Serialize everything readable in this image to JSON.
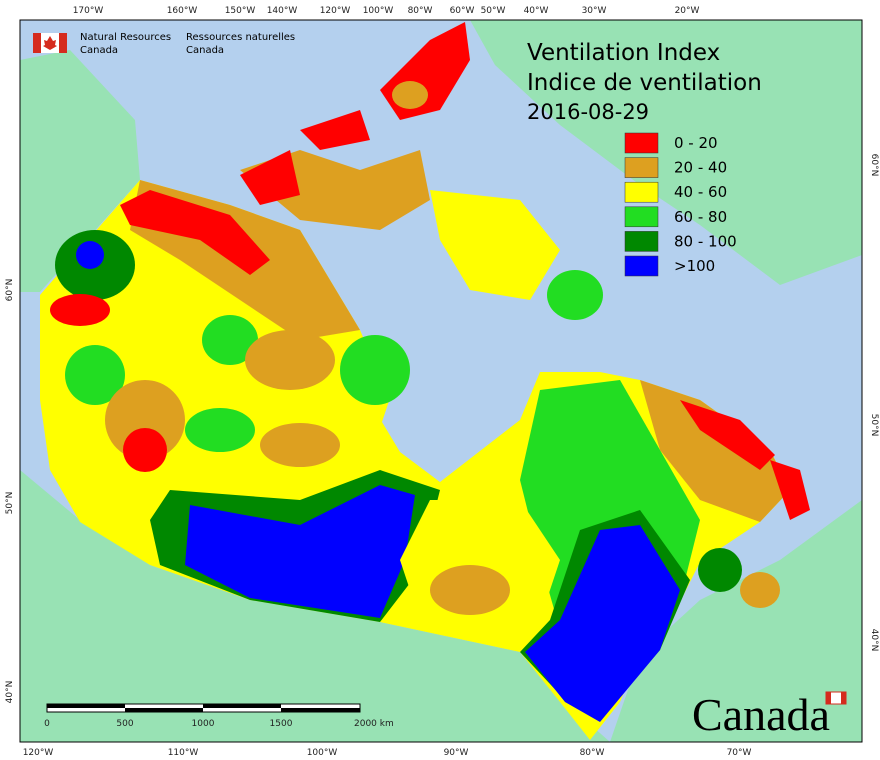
{
  "logo": {
    "en_line1": "Natural Resources",
    "en_line2": "Canada",
    "fr_line1": "Ressources naturelles",
    "fr_line2": "Canada"
  },
  "title": {
    "line1": "Ventilation Index",
    "line2": "Indice de ventilation",
    "date": "2016-08-29"
  },
  "legend": [
    {
      "label": "0 - 20",
      "color": "#ff0000"
    },
    {
      "label": "20 - 40",
      "color": "#dda020"
    },
    {
      "label": "40 - 60",
      "color": "#ffff00"
    },
    {
      "label": "60 - 80",
      "color": "#22dd22"
    },
    {
      "label": "80 - 100",
      "color": "#008800"
    },
    {
      "label": ">100",
      "color": "#0000ff"
    }
  ],
  "graticule": {
    "top": [
      "170°W",
      "160°W",
      "150°W",
      "140°W",
      "120°W",
      "100°W",
      "80°W",
      "60°W",
      "50°W",
      "40°W",
      "30°W",
      "20°W"
    ],
    "bottom": [
      "120°W",
      "110°W",
      "100°W",
      "90°W",
      "80°W",
      "70°W"
    ],
    "left": [
      "60°N",
      "50°N",
      "40°N"
    ],
    "right": [
      "60°N",
      "50°N",
      "40°N"
    ]
  },
  "scale_bar": {
    "labels": [
      "0",
      "500",
      "1000",
      "1500",
      "2000 km"
    ]
  },
  "wordmark": "Canada"
}
